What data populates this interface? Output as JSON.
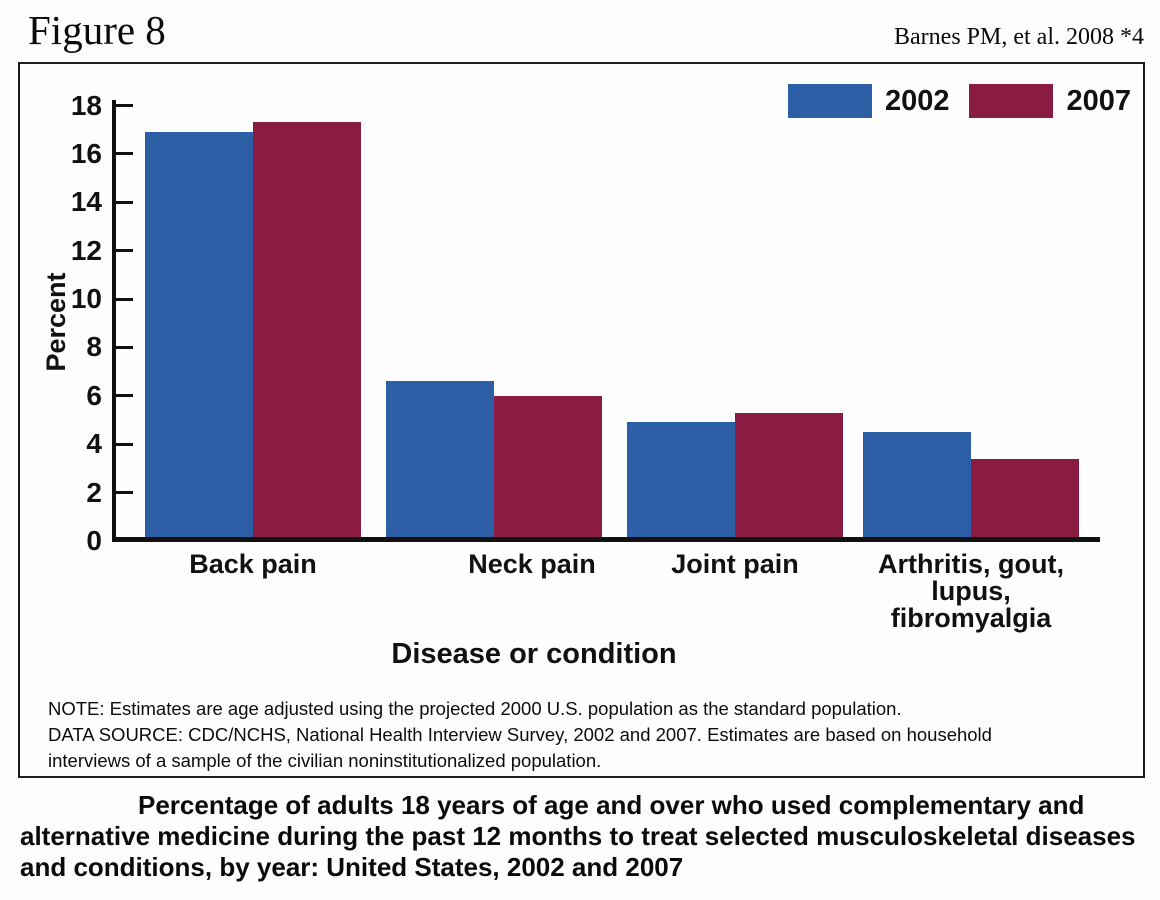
{
  "figure": {
    "label": "Figure 8",
    "source": "Barnes PM, et al. 2008 *4"
  },
  "chart_data": {
    "type": "bar",
    "categories": [
      "Back pain",
      "Neck pain",
      "Joint pain",
      "Arthritis, gout,\nlupus,\nfibromyalgia"
    ],
    "series": [
      {
        "name": "2002",
        "color": "#2D5FA6",
        "values": [
          16.9,
          6.6,
          4.9,
          4.5
        ]
      },
      {
        "name": "2007",
        "color": "#8A1C43",
        "values": [
          17.3,
          6.0,
          5.3,
          3.4
        ]
      }
    ],
    "xlabel": "Disease or condition",
    "ylabel": "Percent",
    "ylim": [
      0,
      18
    ],
    "ytick_step": 2,
    "grid": false,
    "legend_position": "top-right",
    "axis_color": "#111111"
  },
  "notes": {
    "lines": [
      "NOTE: Estimates are age adjusted using the projected 2000 U.S. population as the standard population.",
      "DATA SOURCE: CDC/NCHS, National Health Interview Survey, 2002 and 2007. Estimates are based on household",
      "interviews of a sample of the civilian noninstitutionalized population."
    ]
  },
  "caption_lines": [
    "Percentage of adults 18 years of age and over who used complementary and",
    "alternative medicine during the past 12 months to treat selected musculoskeletal diseases",
    "and conditions, by year: United States, 2002 and 2007"
  ]
}
